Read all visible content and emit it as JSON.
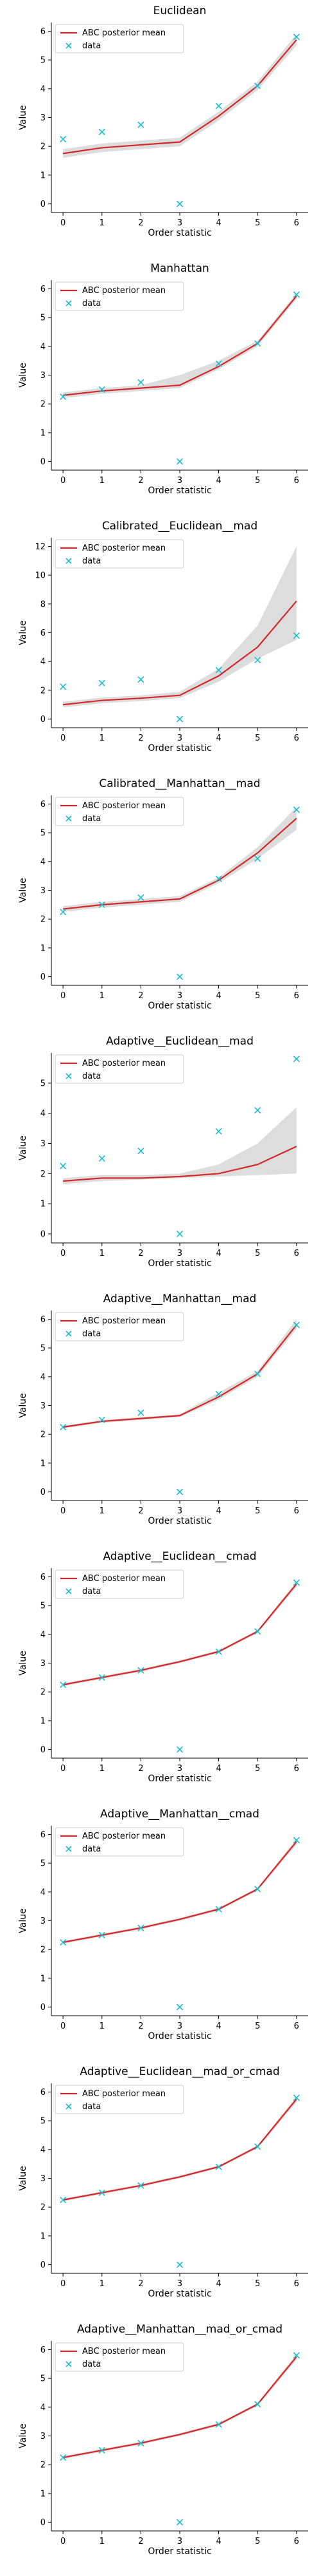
{
  "chart_data": [
    {
      "type": "line",
      "title": "Euclidean",
      "xlabel": "Order statistic",
      "ylabel": "Value",
      "legend": {
        "position": "top-left",
        "entries": [
          "ABC posterior mean",
          "data"
        ]
      },
      "x": [
        0,
        1,
        2,
        3,
        4,
        5,
        6
      ],
      "xticks": [
        "0",
        "1",
        "2",
        "3",
        "4",
        "5",
        "6"
      ],
      "ylim": [
        -0.3,
        6.3
      ],
      "yticks": [
        0,
        1,
        2,
        3,
        4,
        5,
        6
      ],
      "series": [
        {
          "name": "ABC posterior mean",
          "values": [
            1.75,
            1.95,
            2.05,
            2.15,
            3.05,
            4.1,
            5.7
          ]
        },
        {
          "name": "data",
          "values": [
            2.25,
            2.5,
            2.75,
            0.0,
            3.4,
            4.1,
            5.8
          ]
        }
      ],
      "band": {
        "lower": [
          1.6,
          1.8,
          1.9,
          2.0,
          2.9,
          3.95,
          5.5
        ],
        "upper": [
          1.9,
          2.1,
          2.2,
          2.3,
          3.2,
          4.25,
          5.9
        ]
      }
    },
    {
      "type": "line",
      "title": "Manhattan",
      "xlabel": "Order statistic",
      "ylabel": "Value",
      "legend": {
        "position": "top-left",
        "entries": [
          "ABC posterior mean",
          "data"
        ]
      },
      "x": [
        0,
        1,
        2,
        3,
        4,
        5,
        6
      ],
      "xticks": [
        "0",
        "1",
        "2",
        "3",
        "4",
        "5",
        "6"
      ],
      "ylim": [
        -0.3,
        6.3
      ],
      "yticks": [
        0,
        1,
        2,
        3,
        4,
        5,
        6
      ],
      "series": [
        {
          "name": "ABC posterior mean",
          "values": [
            2.3,
            2.45,
            2.55,
            2.65,
            3.3,
            4.1,
            5.75
          ]
        },
        {
          "name": "data",
          "values": [
            2.25,
            2.5,
            2.75,
            0.0,
            3.4,
            4.1,
            5.8
          ]
        }
      ],
      "band": {
        "lower": [
          2.2,
          2.35,
          2.45,
          2.55,
          3.2,
          4.0,
          5.65
        ],
        "upper": [
          2.4,
          2.55,
          2.65,
          3.0,
          3.5,
          4.2,
          5.85
        ]
      }
    },
    {
      "type": "line",
      "title": "Calibrated__Euclidean__mad",
      "xlabel": "Order statistic",
      "ylabel": "Value",
      "legend": {
        "position": "top-left",
        "entries": [
          "ABC posterior mean",
          "data"
        ]
      },
      "x": [
        0,
        1,
        2,
        3,
        4,
        5,
        6
      ],
      "xticks": [
        "0",
        "1",
        "2",
        "3",
        "4",
        "5",
        "6"
      ],
      "ylim": [
        -0.6,
        12.6
      ],
      "yticks": [
        0,
        2,
        4,
        6,
        8,
        10,
        12
      ],
      "series": [
        {
          "name": "ABC posterior mean",
          "values": [
            1.0,
            1.3,
            1.45,
            1.65,
            3.0,
            5.0,
            8.2
          ]
        },
        {
          "name": "data",
          "values": [
            2.25,
            2.5,
            2.75,
            0.0,
            3.4,
            4.1,
            5.8
          ]
        }
      ],
      "band": {
        "lower": [
          0.8,
          1.1,
          1.25,
          1.45,
          2.6,
          4.2,
          5.5
        ],
        "upper": [
          1.2,
          1.5,
          1.65,
          1.9,
          3.5,
          6.5,
          12.0
        ]
      }
    },
    {
      "type": "line",
      "title": "Calibrated__Manhattan__mad",
      "xlabel": "Order statistic",
      "ylabel": "Value",
      "legend": {
        "position": "top-left",
        "entries": [
          "ABC posterior mean",
          "data"
        ]
      },
      "x": [
        0,
        1,
        2,
        3,
        4,
        5,
        6
      ],
      "xticks": [
        "0",
        "1",
        "2",
        "3",
        "4",
        "5",
        "6"
      ],
      "ylim": [
        -0.3,
        6.3
      ],
      "yticks": [
        0,
        1,
        2,
        3,
        4,
        5,
        6
      ],
      "series": [
        {
          "name": "ABC posterior mean",
          "values": [
            2.35,
            2.5,
            2.6,
            2.7,
            3.35,
            4.3,
            5.5
          ]
        },
        {
          "name": "data",
          "values": [
            2.25,
            2.5,
            2.75,
            0.0,
            3.4,
            4.1,
            5.8
          ]
        }
      ],
      "band": {
        "lower": [
          2.25,
          2.4,
          2.5,
          2.6,
          3.25,
          4.1,
          5.1
        ],
        "upper": [
          2.45,
          2.6,
          2.7,
          2.8,
          3.45,
          4.5,
          5.9
        ]
      }
    },
    {
      "type": "line",
      "title": "Adaptive__Euclidean__mad",
      "xlabel": "Order statistic",
      "ylabel": "Value",
      "legend": {
        "position": "top-left",
        "entries": [
          "ABC posterior mean",
          "data"
        ]
      },
      "x": [
        0,
        1,
        2,
        3,
        4,
        5,
        6
      ],
      "xticks": [
        "0",
        "1",
        "2",
        "3",
        "4",
        "5",
        "6"
      ],
      "ylim": [
        -0.3,
        6.0
      ],
      "yticks": [
        0,
        1,
        2,
        3,
        4,
        5
      ],
      "series": [
        {
          "name": "ABC posterior mean",
          "values": [
            1.75,
            1.85,
            1.85,
            1.9,
            2.0,
            2.3,
            2.9
          ]
        },
        {
          "name": "data",
          "values": [
            2.25,
            2.5,
            2.75,
            0.0,
            3.4,
            4.1,
            5.8
          ]
        }
      ],
      "band": {
        "lower": [
          1.65,
          1.75,
          1.8,
          1.85,
          1.9,
          1.95,
          2.0
        ],
        "upper": [
          1.85,
          1.95,
          1.95,
          2.0,
          2.3,
          3.0,
          4.2
        ]
      }
    },
    {
      "type": "line",
      "title": "Adaptive__Manhattan__mad",
      "xlabel": "Order statistic",
      "ylabel": "Value",
      "legend": {
        "position": "top-left",
        "entries": [
          "ABC posterior mean",
          "data"
        ]
      },
      "x": [
        0,
        1,
        2,
        3,
        4,
        5,
        6
      ],
      "xticks": [
        "0",
        "1",
        "2",
        "3",
        "4",
        "5",
        "6"
      ],
      "ylim": [
        -0.3,
        6.3
      ],
      "yticks": [
        0,
        1,
        2,
        3,
        4,
        5,
        6
      ],
      "series": [
        {
          "name": "ABC posterior mean",
          "values": [
            2.25,
            2.45,
            2.55,
            2.65,
            3.3,
            4.1,
            5.8
          ]
        },
        {
          "name": "data",
          "values": [
            2.25,
            2.5,
            2.75,
            0.0,
            3.4,
            4.1,
            5.8
          ]
        }
      ],
      "band": {
        "lower": [
          2.2,
          2.4,
          2.5,
          2.6,
          3.2,
          4.0,
          5.65
        ],
        "upper": [
          2.3,
          2.5,
          2.6,
          2.7,
          3.45,
          4.2,
          6.0
        ]
      }
    },
    {
      "type": "line",
      "title": "Adaptive__Euclidean__cmad",
      "xlabel": "Order statistic",
      "ylabel": "Value",
      "legend": {
        "position": "top-left",
        "entries": [
          "ABC posterior mean",
          "data"
        ]
      },
      "x": [
        0,
        1,
        2,
        3,
        4,
        5,
        6
      ],
      "xticks": [
        "0",
        "1",
        "2",
        "3",
        "4",
        "5",
        "6"
      ],
      "ylim": [
        -0.3,
        6.3
      ],
      "yticks": [
        0,
        1,
        2,
        3,
        4,
        5,
        6
      ],
      "series": [
        {
          "name": "ABC posterior mean",
          "values": [
            2.25,
            2.5,
            2.75,
            3.05,
            3.4,
            4.1,
            5.75
          ]
        },
        {
          "name": "data",
          "values": [
            2.25,
            2.5,
            2.75,
            0.0,
            3.4,
            4.1,
            5.8
          ]
        }
      ],
      "band": {
        "lower": [
          2.2,
          2.45,
          2.7,
          3.0,
          3.35,
          4.05,
          5.65
        ],
        "upper": [
          2.3,
          2.55,
          2.8,
          3.1,
          3.45,
          4.15,
          5.85
        ]
      }
    },
    {
      "type": "line",
      "title": "Adaptive__Manhattan__cmad",
      "xlabel": "Order statistic",
      "ylabel": "Value",
      "legend": {
        "position": "top-left",
        "entries": [
          "ABC posterior mean",
          "data"
        ]
      },
      "x": [
        0,
        1,
        2,
        3,
        4,
        5,
        6
      ],
      "xticks": [
        "0",
        "1",
        "2",
        "3",
        "4",
        "5",
        "6"
      ],
      "ylim": [
        -0.3,
        6.3
      ],
      "yticks": [
        0,
        1,
        2,
        3,
        4,
        5,
        6
      ],
      "series": [
        {
          "name": "ABC posterior mean",
          "values": [
            2.25,
            2.5,
            2.75,
            3.05,
            3.4,
            4.1,
            5.75
          ]
        },
        {
          "name": "data",
          "values": [
            2.25,
            2.5,
            2.75,
            0.0,
            3.4,
            4.1,
            5.8
          ]
        }
      ],
      "band": {
        "lower": [
          2.2,
          2.45,
          2.7,
          3.0,
          3.35,
          4.05,
          5.65
        ],
        "upper": [
          2.3,
          2.55,
          2.8,
          3.1,
          3.45,
          4.15,
          5.85
        ]
      }
    },
    {
      "type": "line",
      "title": "Adaptive__Euclidean__mad_or_cmad",
      "xlabel": "Order statistic",
      "ylabel": "Value",
      "legend": {
        "position": "top-left",
        "entries": [
          "ABC posterior mean",
          "data"
        ]
      },
      "x": [
        0,
        1,
        2,
        3,
        4,
        5,
        6
      ],
      "xticks": [
        "0",
        "1",
        "2",
        "3",
        "4",
        "5",
        "6"
      ],
      "ylim": [
        -0.3,
        6.3
      ],
      "yticks": [
        0,
        1,
        2,
        3,
        4,
        5,
        6
      ],
      "series": [
        {
          "name": "ABC posterior mean",
          "values": [
            2.25,
            2.5,
            2.75,
            3.05,
            3.4,
            4.1,
            5.75
          ]
        },
        {
          "name": "data",
          "values": [
            2.25,
            2.5,
            2.75,
            0.0,
            3.4,
            4.1,
            5.8
          ]
        }
      ],
      "band": {
        "lower": [
          2.2,
          2.45,
          2.7,
          3.0,
          3.35,
          4.05,
          5.65
        ],
        "upper": [
          2.3,
          2.55,
          2.8,
          3.1,
          3.45,
          4.15,
          5.85
        ]
      }
    },
    {
      "type": "line",
      "title": "Adaptive__Manhattan__mad_or_cmad",
      "xlabel": "Order statistic",
      "ylabel": "Value",
      "legend": {
        "position": "top-left",
        "entries": [
          "ABC posterior mean",
          "data"
        ]
      },
      "x": [
        0,
        1,
        2,
        3,
        4,
        5,
        6
      ],
      "xticks": [
        "0",
        "1",
        "2",
        "3",
        "4",
        "5",
        "6"
      ],
      "ylim": [
        -0.3,
        6.3
      ],
      "yticks": [
        0,
        1,
        2,
        3,
        4,
        5,
        6
      ],
      "series": [
        {
          "name": "ABC posterior mean",
          "values": [
            2.25,
            2.5,
            2.75,
            3.05,
            3.4,
            4.1,
            5.75
          ]
        },
        {
          "name": "data",
          "values": [
            2.25,
            2.5,
            2.75,
            0.0,
            3.4,
            4.1,
            5.8
          ]
        }
      ],
      "band": {
        "lower": [
          2.2,
          2.45,
          2.7,
          3.0,
          3.35,
          4.05,
          5.65
        ],
        "upper": [
          2.3,
          2.55,
          2.8,
          3.1,
          3.45,
          4.15,
          5.85
        ]
      }
    }
  ],
  "colors": {
    "mean_line": "#d62728",
    "data_marker": "#17becf",
    "band": "#9e9e9e",
    "axis": "#000000"
  }
}
